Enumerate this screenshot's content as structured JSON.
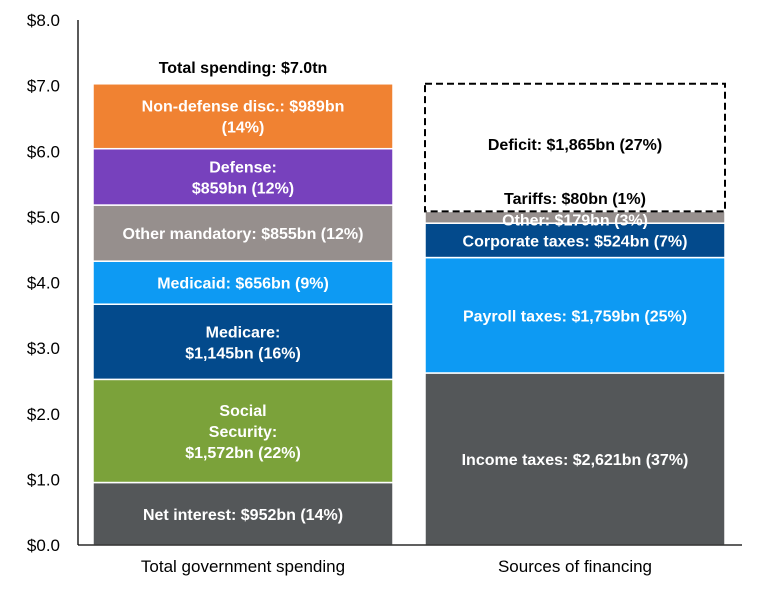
{
  "chart_data": {
    "type": "bar",
    "stacked": true,
    "y_unit": "$tn",
    "ylim": [
      0,
      8
    ],
    "y_ticks": [
      "$0.0",
      "$1.0",
      "$2.0",
      "$3.0",
      "$4.0",
      "$5.0",
      "$6.0",
      "$7.0",
      "$8.0"
    ],
    "categories": [
      "Total government spending",
      "Sources of financing"
    ],
    "annotation": "Total spending: $7.0tn",
    "stacks": [
      {
        "category": "Total government spending",
        "segments": [
          {
            "label": "Net interest: $952bn (14%)",
            "value": 0.952,
            "color": "#545759",
            "text_color": "#ffffff"
          },
          {
            "label": "Social Security: $1,572bn (22%)",
            "value": 1.572,
            "color": "#7ba23a",
            "text_color": "#ffffff"
          },
          {
            "label": "Medicare: $1,145bn (16%)",
            "value": 1.145,
            "color": "#034a8c",
            "text_color": "#ffffff"
          },
          {
            "label": "Medicaid: $656bn (9%)",
            "value": 0.656,
            "color": "#0d9af3",
            "text_color": "#ffffff"
          },
          {
            "label": "Other mandatory: $855bn (12%)",
            "value": 0.855,
            "color": "#968f8d",
            "text_color": "#ffffff"
          },
          {
            "label": "Defense: $859bn (12%)",
            "value": 0.859,
            "color": "#7741bd",
            "text_color": "#ffffff"
          },
          {
            "label": "Non-defense disc.: $989bn (14%)",
            "value": 0.989,
            "color": "#f08232",
            "text_color": "#ffffff"
          }
        ]
      },
      {
        "category": "Sources of financing",
        "segments": [
          {
            "label": "Income taxes: $2,621bn (37%)",
            "value": 2.621,
            "color": "#545759",
            "text_color": "#ffffff"
          },
          {
            "label": "Payroll taxes: $1,759bn (25%)",
            "value": 1.759,
            "color": "#0d9af3",
            "text_color": "#ffffff"
          },
          {
            "label": "Corporate taxes: $524bn (7%)",
            "value": 0.524,
            "color": "#034a8c",
            "text_color": "#ffffff"
          },
          {
            "label": "Other: $179bn (3%)",
            "value": 0.179,
            "color": "#968f8d",
            "text_color": "#ffffff"
          },
          {
            "label": "Tariffs: $80bn (1%)",
            "value": 0.08,
            "color": "#ffffff",
            "text_color": "#000000",
            "dashed": true
          },
          {
            "label": "Deficit: $1,865bn (27%)",
            "value": 1.865,
            "color": "#ffffff",
            "text_color": "#000000",
            "dashed": true
          }
        ]
      }
    ]
  }
}
